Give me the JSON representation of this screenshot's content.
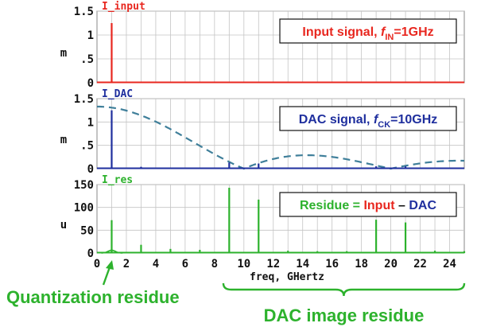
{
  "colors": {
    "input": "#e8271f",
    "dac": "#1f2f9e",
    "residue": "#2db22d",
    "envelope": "#3f7f9a",
    "grid": "#c4c4c4",
    "frame": "#888888"
  },
  "chart_data": [
    {
      "type": "line",
      "trace_name": "I_input",
      "unit": "m",
      "ylim": [
        0,
        1.5
      ],
      "yticks": [
        "0",
        ".5",
        "1",
        "1.5"
      ],
      "callout": {
        "prefix": "Input signal, ",
        "sym": "f",
        "sub": "IN",
        "suffix": "=1GHz"
      },
      "peaks": [
        {
          "f": 1.0,
          "v": 1.25
        }
      ]
    },
    {
      "type": "line",
      "trace_name": "I_DAC",
      "unit": "m",
      "ylim": [
        0,
        1.5
      ],
      "yticks": [
        "0",
        ".5",
        "1",
        "1.5"
      ],
      "callout": {
        "prefix": "DAC signal, ",
        "sym": "f",
        "sub": "CK",
        "suffix": "=10GHz"
      },
      "peaks": [
        {
          "f": 1.0,
          "v": 1.25
        },
        {
          "f": 3.0,
          "v": 0.04
        },
        {
          "f": 5.0,
          "v": 0.02
        },
        {
          "f": 7.0,
          "v": 0.02
        },
        {
          "f": 9.0,
          "v": 0.13
        },
        {
          "f": 11.0,
          "v": 0.11
        },
        {
          "f": 13.0,
          "v": 0.02
        },
        {
          "f": 17.0,
          "v": 0.02
        },
        {
          "f": 19.0,
          "v": 0.05
        },
        {
          "f": 21.0,
          "v": 0.05
        },
        {
          "f": 23.0,
          "v": 0.02
        }
      ],
      "envelope_peak": 1.33
    },
    {
      "type": "line",
      "trace_name": "I_res",
      "unit": "u",
      "ylim": [
        0,
        150
      ],
      "yticks": [
        "0",
        "50",
        "100",
        "150"
      ],
      "callout": {
        "word1": "Residue",
        "eq": " = ",
        "word2": "Input",
        "minus": " – ",
        "word3": "DAC"
      },
      "peaks": [
        {
          "f": 1.0,
          "v": 72
        },
        {
          "f": 3.0,
          "v": 18
        },
        {
          "f": 5.0,
          "v": 9
        },
        {
          "f": 7.0,
          "v": 7
        },
        {
          "f": 9.0,
          "v": 143
        },
        {
          "f": 11.0,
          "v": 117
        },
        {
          "f": 13.0,
          "v": 5
        },
        {
          "f": 15.0,
          "v": 4
        },
        {
          "f": 17.0,
          "v": 4
        },
        {
          "f": 19.0,
          "v": 73
        },
        {
          "f": 21.0,
          "v": 67
        },
        {
          "f": 23.0,
          "v": 5
        },
        {
          "f": 25.0,
          "v": 4
        }
      ]
    }
  ],
  "x_axis": {
    "xlim": [
      0,
      25
    ],
    "ticks": [
      "0",
      "2",
      "4",
      "6",
      "8",
      "10",
      "12",
      "14",
      "16",
      "18",
      "20",
      "22",
      "24"
    ],
    "label": "freq, GHertz"
  },
  "annotations": {
    "quantization": "Quantization residue",
    "image": "DAC image residue"
  }
}
